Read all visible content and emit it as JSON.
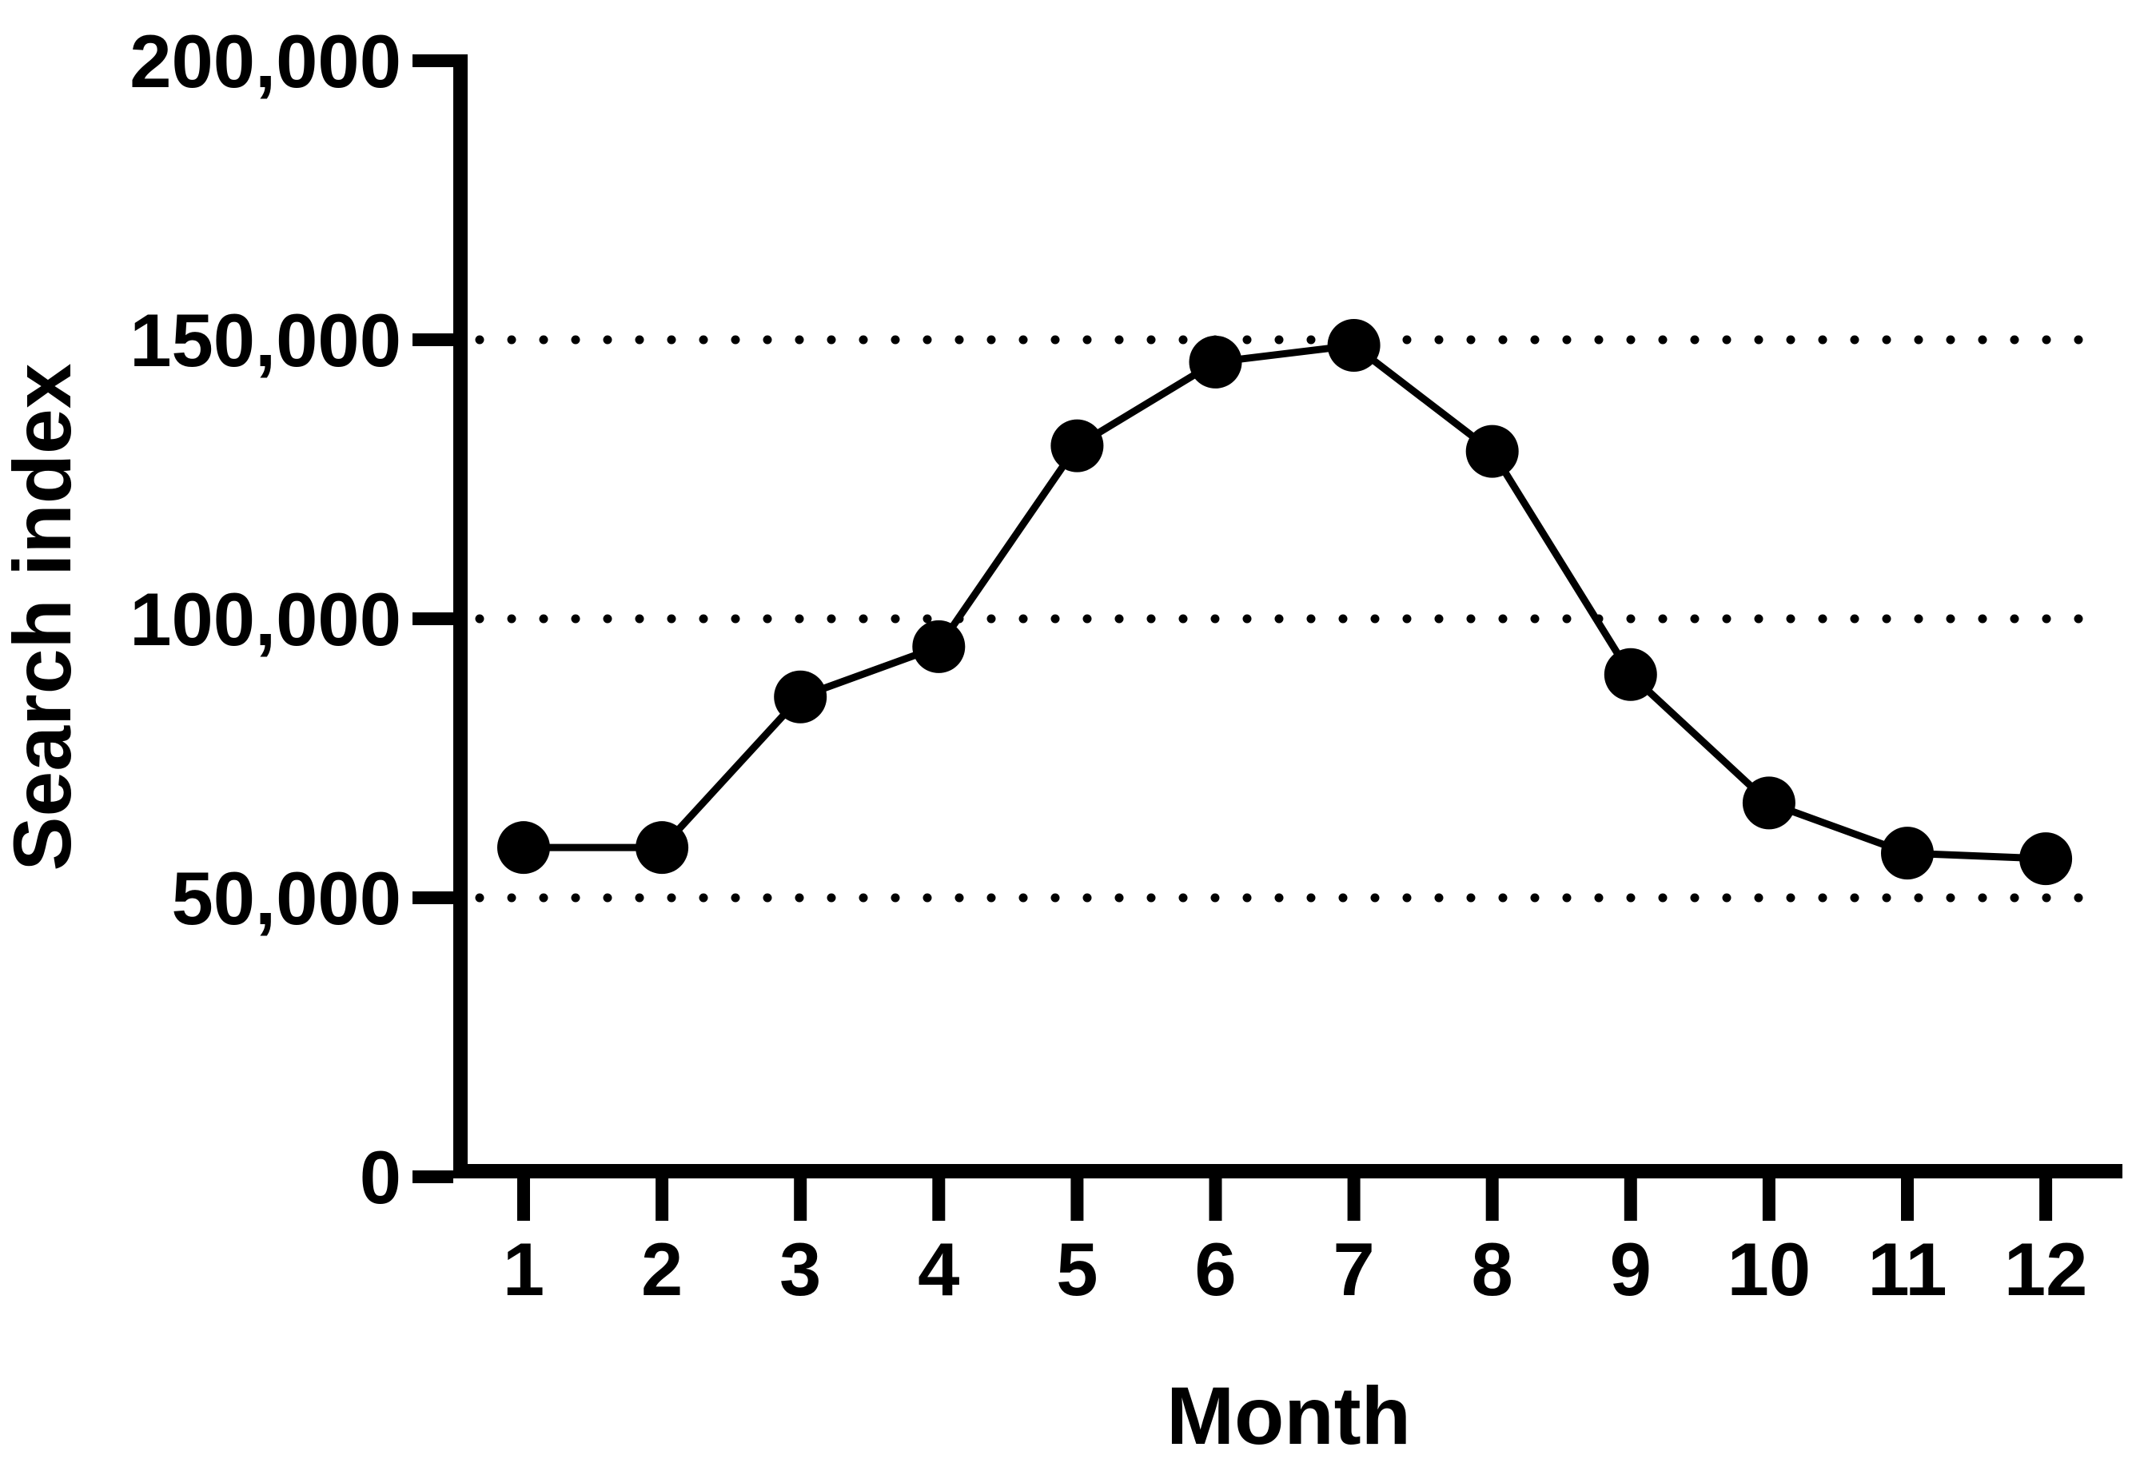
{
  "figure": {
    "background": "#ffffff",
    "ink_color": "#000000"
  },
  "chart_data": {
    "type": "line",
    "title": "",
    "xlabel": "Month",
    "ylabel": "Search index",
    "x": [
      1,
      2,
      3,
      4,
      5,
      6,
      7,
      8,
      9,
      10,
      11,
      12
    ],
    "x_tick_labels": [
      "1",
      "2",
      "3",
      "4",
      "5",
      "6",
      "7",
      "8",
      "9",
      "10",
      "11",
      "12"
    ],
    "series": [
      {
        "name": "Search index",
        "values": [
          59000,
          59000,
          86000,
          95000,
          131000,
          146000,
          149000,
          130000,
          90000,
          67000,
          58000,
          57000
        ]
      }
    ],
    "ylim": [
      0,
      200000
    ],
    "y_ticks": [
      0,
      50000,
      100000,
      150000,
      200000
    ],
    "y_tick_labels": [
      "0",
      "50,000",
      "100,000",
      "150,000",
      "200,000"
    ],
    "gridlines": {
      "axis": "y",
      "at": [
        50000,
        100000,
        150000
      ],
      "style": "dotted"
    },
    "legend_position": "none",
    "marker": "filled-circle",
    "line_color": "#000000",
    "marker_color": "#000000",
    "grid_color": "#000000"
  }
}
